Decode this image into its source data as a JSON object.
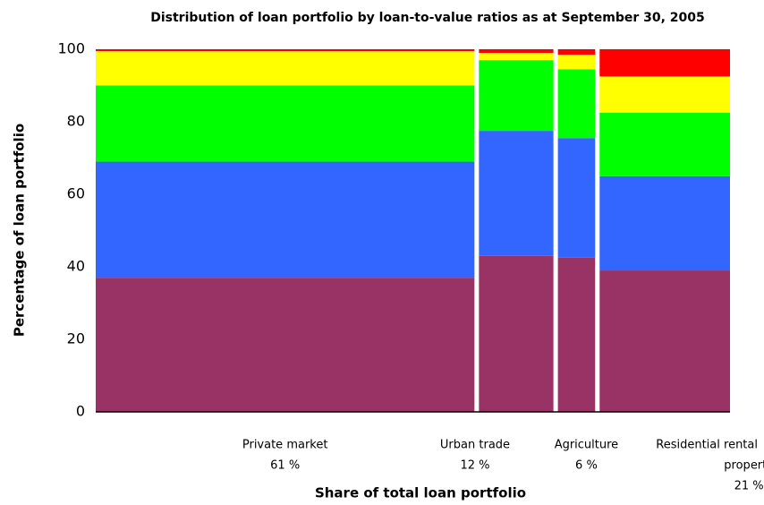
{
  "chart_data": {
    "type": "marimekko",
    "title": "Distribution of loan portfolio by loan-to-value ratios as at September 30, 2005",
    "x_label": "Share of total loan portfolio",
    "y_label": "Percentage of loan portfolio",
    "categories": [
      [
        "Private market"
      ],
      [
        "Urban trade"
      ],
      [
        "Agriculture"
      ],
      [
        "Residential rental",
        "property"
      ]
    ],
    "shares": [
      61,
      12,
      6,
      21
    ],
    "share_labels": [
      "61 %",
      "12 %",
      "6 %",
      "21 %"
    ],
    "series": [
      {
        "color": "#993366",
        "values": [
          37,
          43,
          42.5,
          39
        ]
      },
      {
        "color": "#3366ff",
        "values": [
          32,
          34.5,
          33,
          26
        ]
      },
      {
        "color": "#00ff00",
        "values": [
          21,
          19.5,
          19,
          17.5
        ]
      },
      {
        "color": "#ffff00",
        "values": [
          9.5,
          2,
          4,
          10
        ]
      },
      {
        "color": "#ff0000",
        "values": [
          0.5,
          1,
          1.5,
          7.5
        ]
      }
    ],
    "ylim": [
      0,
      100
    ],
    "yticks": [
      0,
      20,
      40,
      60,
      80,
      100
    ],
    "grid": false
  }
}
